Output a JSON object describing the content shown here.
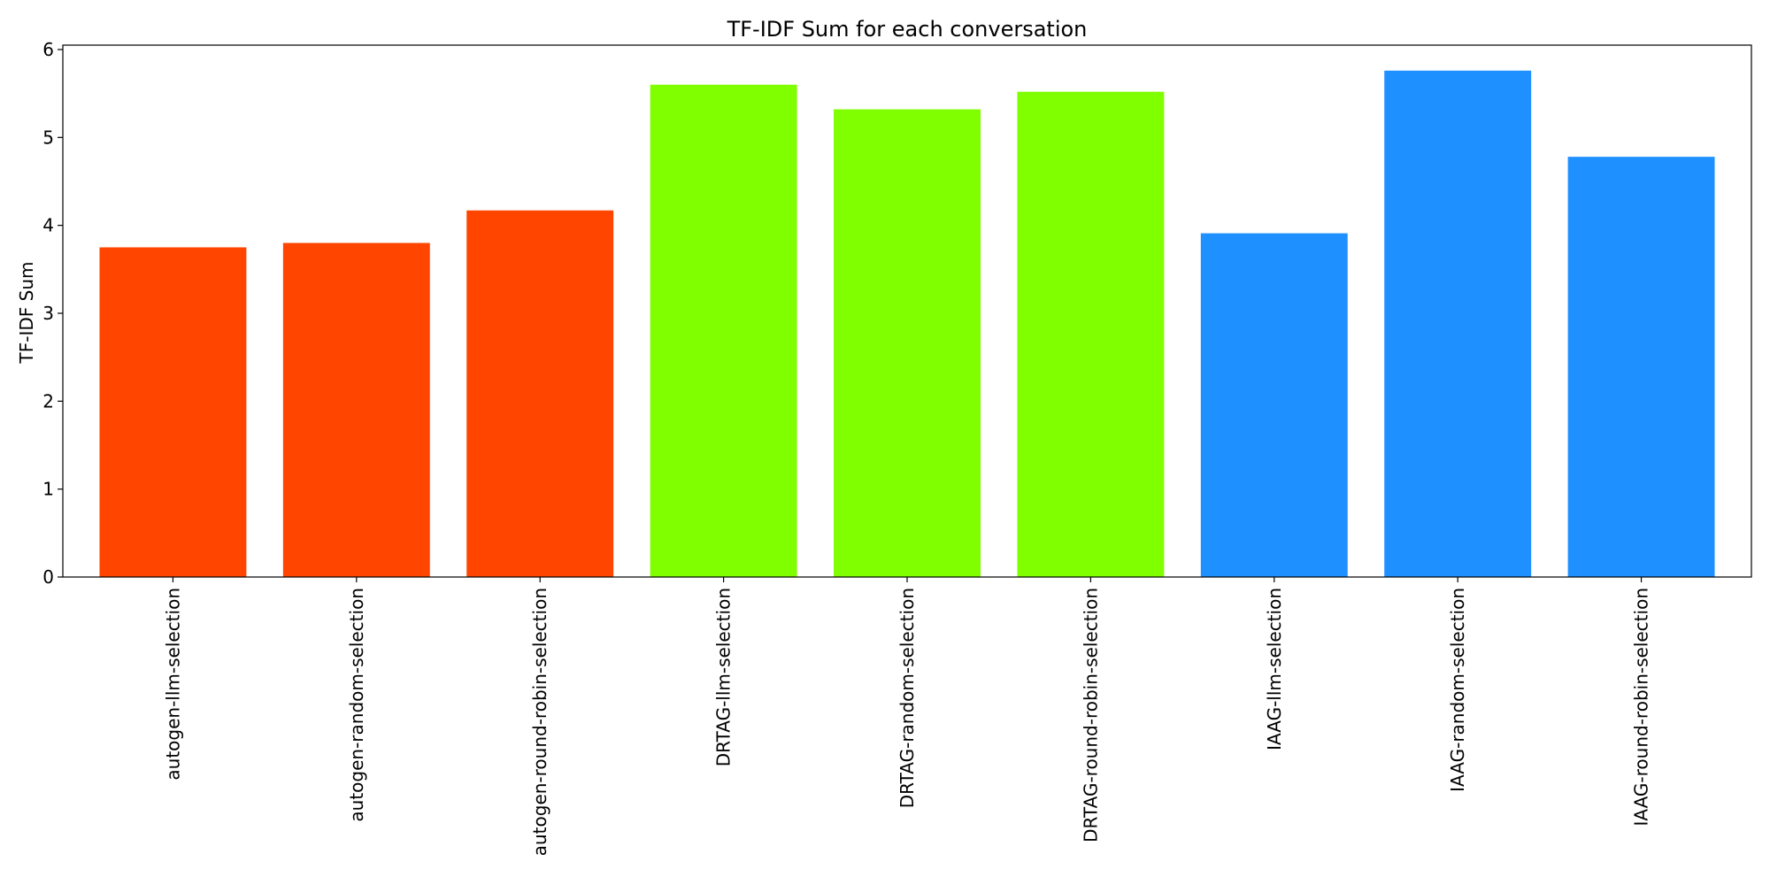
{
  "chart_data": {
    "type": "bar",
    "title": "TF-IDF Sum for each conversation",
    "xlabel": "",
    "ylabel": "TF-IDF Sum",
    "ylim": [
      0,
      6.05
    ],
    "yticks": [
      0,
      1,
      2,
      3,
      4,
      5,
      6
    ],
    "categories": [
      "autogen-llm-selection",
      "autogen-random-selection",
      "autogen-round-robin-selection",
      "DRTAG-llm-selection",
      "DRTAG-random-selection",
      "DRTAG-round-robin-selection",
      "IAAG-llm-selection",
      "IAAG-random-selection",
      "IAAG-round-robin-selection"
    ],
    "values": [
      3.75,
      3.8,
      4.17,
      5.6,
      5.32,
      5.52,
      3.91,
      5.76,
      4.78
    ],
    "bar_colors": [
      "#ff4500",
      "#ff4500",
      "#ff4500",
      "#7fff00",
      "#7fff00",
      "#7fff00",
      "#1e90ff",
      "#1e90ff",
      "#1e90ff"
    ],
    "grid": false,
    "legend": "none"
  }
}
